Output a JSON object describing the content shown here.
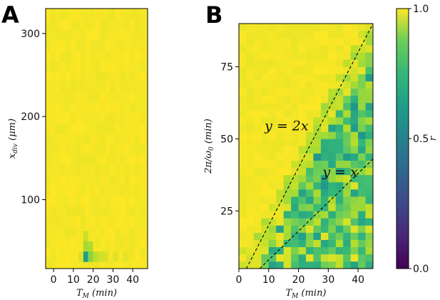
{
  "chart_data": [
    {
      "type": "heatmap",
      "panel": "A",
      "xlabel": "T_M (min)",
      "ylabel": "x_div (μm)",
      "xlim": [
        -4,
        47.5
      ],
      "ylim": [
        17,
        330
      ],
      "xticks": [
        0,
        10,
        20,
        30,
        40
      ],
      "yticks": [
        100,
        200,
        300
      ],
      "x_step": 2.5,
      "y_step": 12.5,
      "x_cols": 20,
      "y_rows": 25,
      "cells_below_1": [
        {
          "x": 15,
          "y": 50,
          "r": 0.92
        },
        {
          "x": 15,
          "y": 37.5,
          "r": 0.86
        },
        {
          "x": 15,
          "y": 25,
          "r": 0.55
        },
        {
          "x": 17.5,
          "y": 37.5,
          "r": 0.88
        },
        {
          "x": 17.5,
          "y": 25,
          "r": 0.82
        },
        {
          "x": 20,
          "y": 25,
          "r": 0.9
        },
        {
          "x": 22.5,
          "y": 25,
          "r": 0.93
        },
        {
          "x": 12.5,
          "y": 25,
          "r": 0.95
        },
        {
          "x": 25,
          "y": 25,
          "r": 0.94
        },
        {
          "x": 30,
          "y": 25,
          "r": 0.95
        },
        {
          "x": 35,
          "y": 25,
          "r": 0.96
        }
      ]
    },
    {
      "type": "heatmap",
      "panel": "B",
      "xlabel": "T_M (min)",
      "ylabel": "2π/ω₀ (min)",
      "xlim": [
        0,
        45
      ],
      "ylim": [
        5,
        90
      ],
      "xticks": [
        0,
        10,
        20,
        30,
        40
      ],
      "yticks": [
        25,
        50,
        75
      ],
      "x_step": 2.5,
      "y_step": 2.5,
      "annotations": [
        {
          "text": "y = 2x",
          "x": 16,
          "y": 53
        },
        {
          "text": "y = x",
          "x": 34,
          "y": 37
        }
      ],
      "lines": [
        {
          "name": "y = 2x",
          "slope": 2,
          "x0": 0
        },
        {
          "name": "y = x",
          "slope": 1,
          "x0": 2
        }
      ]
    }
  ],
  "colorbar": {
    "label": "r",
    "range": [
      0,
      1
    ],
    "ticks": [
      "0.0",
      "0.5",
      "1.0"
    ],
    "colormap": "viridis"
  }
}
